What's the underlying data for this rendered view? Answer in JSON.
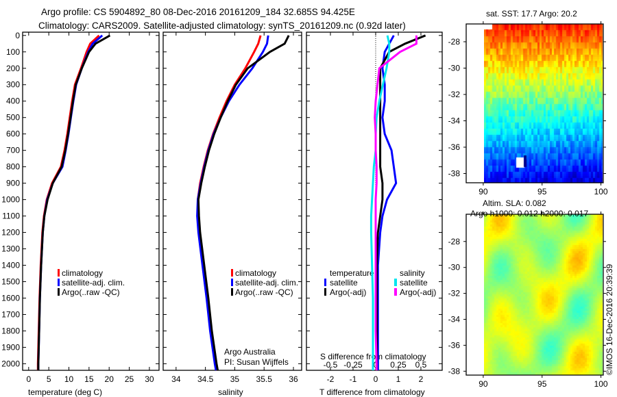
{
  "title": {
    "line1": "Argo profile: CS 5904892_80 08-Dec-2016 20161209_184 32.685S 94.425E",
    "line2": "Climatology: CARS2009. Satellite-adjusted climatology: synTS_20161209.nc (0.92d later)"
  },
  "credit": {
    "line1": "Argo Australia",
    "line2": "PI: Susan Wijffels"
  },
  "stamp": "©IMOS 16-Dec-2016 20:39:39",
  "colors": {
    "climatology": "#ff0000",
    "satellite": "#0000ff",
    "argo": "#000000",
    "sal_satellite": "#00e5ee",
    "sal_argo": "#ff00ff"
  },
  "chart_data": [
    {
      "type": "line",
      "name": "temperature-profile",
      "xlabel": "temperature (deg C)",
      "ylabel": "",
      "xlim": [
        -1.5,
        32.4
      ],
      "ylim": [
        2040,
        -20
      ],
      "xticks": [
        "0",
        "5",
        "10",
        "15",
        "20",
        "25",
        "30"
      ],
      "yticks": [
        "0",
        "100",
        "200",
        "300",
        "400",
        "500",
        "600",
        "700",
        "800",
        "900",
        "1000",
        "1100",
        "1200",
        "1300",
        "1400",
        "1500",
        "1600",
        "1700",
        "1800",
        "1900",
        "2000"
      ],
      "depth": [
        0,
        50,
        100,
        200,
        300,
        400,
        500,
        600,
        700,
        800,
        900,
        1000,
        1100,
        1200,
        1400,
        1600,
        1800,
        2000,
        2040
      ],
      "series": [
        {
          "name": "climatology",
          "values": [
            17.5,
            15.3,
            14.4,
            13.0,
            11.5,
            10.8,
            10.2,
            9.6,
            8.9,
            8.0,
            5.8,
            4.5,
            3.8,
            3.4,
            3.0,
            2.7,
            2.5,
            2.3,
            2.3
          ]
        },
        {
          "name": "satellite-adj. clim.",
          "values": [
            18.3,
            15.9,
            14.8,
            13.2,
            11.8,
            11.1,
            10.5,
            9.9,
            9.2,
            8.4,
            6.0,
            4.6,
            3.9,
            3.5,
            3.1,
            2.8,
            2.6,
            2.4,
            2.4
          ]
        },
        {
          "name": "Argo(..raw -QC)",
          "values": [
            20.2,
            16.6,
            15.0,
            13.2,
            11.7,
            11.0,
            10.4,
            9.8,
            9.1,
            8.2,
            6.0,
            4.7,
            3.9,
            3.5,
            3.1,
            2.8,
            2.6,
            2.4,
            2.4
          ]
        }
      ]
    },
    {
      "type": "line",
      "name": "salinity-profile",
      "xlabel": "salinity",
      "xlim": [
        33.78,
        36.14
      ],
      "ylim": [
        2040,
        -20
      ],
      "xticks": [
        "34",
        "34.5",
        "35",
        "35.5",
        "36"
      ],
      "depth": [
        0,
        50,
        100,
        200,
        300,
        400,
        500,
        600,
        700,
        800,
        900,
        1000,
        1100,
        1200,
        1400,
        1600,
        1800,
        2000,
        2040
      ],
      "series": [
        {
          "name": "climatology",
          "values": [
            35.44,
            35.4,
            35.33,
            35.18,
            35.0,
            34.86,
            34.74,
            34.63,
            34.54,
            34.47,
            34.41,
            34.37,
            34.38,
            34.4,
            34.47,
            34.54,
            34.6,
            34.68,
            34.7
          ]
        },
        {
          "name": "satellite-adj. clim.",
          "values": [
            35.57,
            35.55,
            35.48,
            35.3,
            35.08,
            34.9,
            34.76,
            34.64,
            34.55,
            34.48,
            34.42,
            34.37,
            34.36,
            34.38,
            34.45,
            34.52,
            34.58,
            34.66,
            34.68
          ]
        },
        {
          "name": "Argo(..raw -QC)",
          "values": [
            35.92,
            35.85,
            35.6,
            35.22,
            35.02,
            34.88,
            34.76,
            34.65,
            34.56,
            34.49,
            34.43,
            34.38,
            34.39,
            34.41,
            34.48,
            34.55,
            34.61,
            34.69,
            34.71
          ]
        }
      ]
    },
    {
      "type": "line",
      "name": "difference-profile",
      "xlabel": "T difference from climatology",
      "x2label": "S difference from climatology",
      "xlim": [
        -3.06,
        2.94
      ],
      "ylim": [
        2040,
        -20
      ],
      "xticks": [
        "-2",
        "-1",
        "0",
        "1",
        "2"
      ],
      "x2ticks": [
        "-0.5",
        "-0.25",
        "0",
        "0.25",
        "0.5"
      ],
      "legend_headers": [
        "temperature",
        "salinity"
      ],
      "depth": [
        0,
        50,
        100,
        200,
        300,
        400,
        500,
        600,
        700,
        800,
        900,
        1000,
        1100,
        1200,
        1400,
        1600,
        1800,
        2000,
        2040
      ],
      "series": [
        {
          "name": "satellite",
          "group": "temperature",
          "values": [
            0.8,
            0.6,
            0.4,
            0.3,
            0.4,
            0.4,
            0.3,
            0.4,
            0.7,
            0.8,
            0.9,
            0.5,
            0.3,
            0.2,
            0.1,
            0.1,
            0.1,
            0.1,
            0.1
          ]
        },
        {
          "name": "Argo(-adj)",
          "group": "temperature",
          "values": [
            2.2,
            1.3,
            0.6,
            0.2,
            0.2,
            0.2,
            0.2,
            0.2,
            0.2,
            0.2,
            0.3,
            0.3,
            0.2,
            0.1,
            0.05,
            0.05,
            0.05,
            0.05,
            0.05
          ]
        },
        {
          "name": "satellite",
          "group": "salinity",
          "values": [
            0.13,
            0.15,
            0.15,
            0.12,
            0.08,
            0.04,
            0.01,
            0.0,
            0.0,
            -0.02,
            -0.03,
            -0.04,
            -0.05,
            -0.05,
            -0.04,
            -0.03,
            -0.03,
            -0.03,
            -0.03
          ]
        },
        {
          "name": "Argo(-adj)",
          "group": "salinity",
          "values": [
            0.45,
            0.45,
            0.27,
            0.04,
            0.02,
            0.0,
            -0.01,
            0.0,
            0.0,
            0.01,
            0.01,
            0.0,
            0.0,
            0.0,
            0.0,
            0.0,
            0.0,
            0.01,
            0.01
          ]
        }
      ]
    },
    {
      "type": "heatmap",
      "name": "satellite-sst-map",
      "title": "sat. SST: 17.7 Argo: 20.2",
      "xticks": [
        "90",
        "95",
        "100"
      ],
      "yticks": [
        "-28",
        "-30",
        "-32",
        "-34",
        "-36",
        "-38"
      ],
      "xlim": [
        88.55,
        100.2
      ],
      "ylim": [
        -38.7,
        -26.65
      ]
    },
    {
      "type": "heatmap",
      "name": "altimetry-sla-map",
      "title1": "Altim. SLA: 0.082",
      "title2": "Argo h1000: 0.012 h2000: 0.017",
      "xticks": [
        "90",
        "95",
        "100"
      ],
      "yticks": [
        "-28",
        "-30",
        "-32",
        "-34",
        "-36",
        "-38"
      ],
      "xlim": [
        88.55,
        100.2
      ],
      "ylim": [
        -38.3,
        -25.9
      ]
    }
  ]
}
